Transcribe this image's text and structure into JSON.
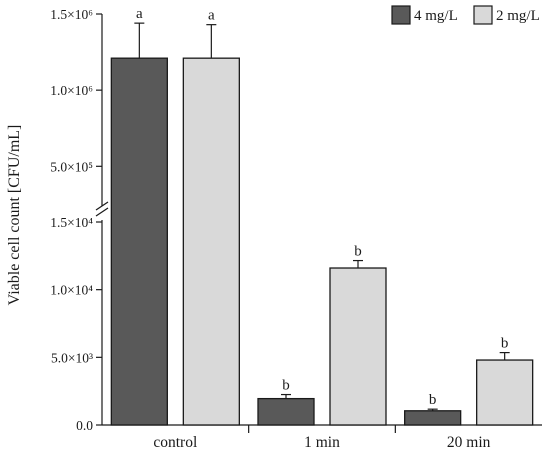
{
  "chart_data": {
    "type": "bar",
    "ylabel": "Viable cell count [CFU/mL]",
    "axis_break": true,
    "categories": [
      "control",
      "1 min",
      "20 min"
    ],
    "series": [
      {
        "name": "4 mg/L",
        "color": "#595959",
        "values": [
          1210000,
          1950,
          1050
        ],
        "errors": [
          230000,
          300,
          120
        ],
        "letters": [
          "a",
          "b",
          "b"
        ]
      },
      {
        "name": "2 mg/L",
        "color": "#d9d9d9",
        "values": [
          1210000,
          11600,
          4800
        ],
        "errors": [
          220000,
          550,
          550
        ],
        "letters": [
          "a",
          "b",
          "b"
        ]
      }
    ],
    "y_ticks_lower": [
      "0.0",
      "5.0×10³",
      "1.0×10⁴",
      "1.5×10⁴"
    ],
    "y_ticks_lower_values": [
      0,
      5000,
      10000,
      15000
    ],
    "y_ticks_upper": [
      "5.0×10⁵",
      "1.0×10⁶",
      "1.5×10⁶"
    ],
    "y_ticks_upper_values": [
      500000,
      1000000,
      1500000
    ],
    "ylim_lower": [
      0,
      15000
    ],
    "ylim_upper": [
      200000,
      1500000
    ],
    "legend_position": "top-right"
  }
}
